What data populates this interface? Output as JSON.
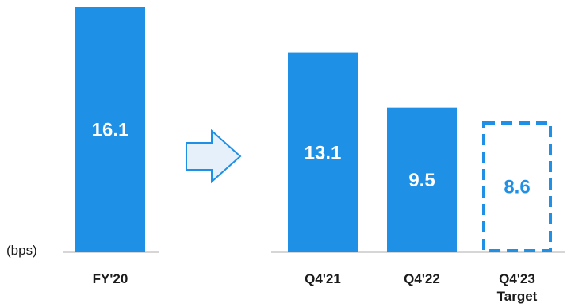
{
  "chart_data": {
    "type": "bar",
    "unit_label": "(bps)",
    "categories": [
      {
        "label_lines": [
          "FY'20"
        ],
        "value": 16.1,
        "style": "solid"
      },
      {
        "label_lines": [
          "Q4'21"
        ],
        "value": 13.1,
        "style": "solid"
      },
      {
        "label_lines": [
          "Q4'22"
        ],
        "value": 9.5,
        "style": "solid"
      },
      {
        "label_lines": [
          "Q4'23",
          "Target"
        ],
        "value": 8.6,
        "style": "dashed"
      }
    ],
    "value_labels": [
      "16.1",
      "13.1",
      "9.5",
      "8.6"
    ],
    "ylim": [
      0,
      16.1
    ],
    "grid": false,
    "colors": {
      "bar": "#1E90E6",
      "arrow_fill": "#E6F0FB",
      "arrow_stroke": "#1E90E6",
      "baseline": "#C9C9C9",
      "text": "#1a1a1a"
    }
  }
}
